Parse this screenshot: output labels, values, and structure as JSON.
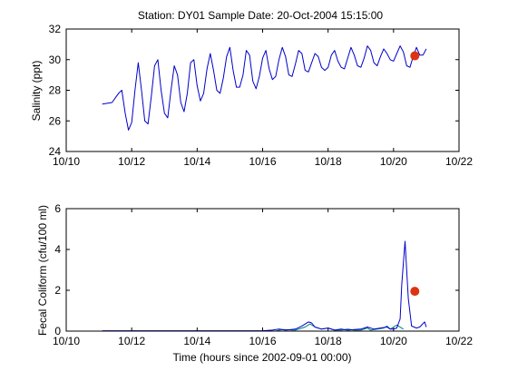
{
  "chart_data": [
    {
      "type": "line",
      "title": "Station: DY01  Sample Date: 20-Oct-2004 15:15:00",
      "ylabel": "Salinity (ppt)",
      "xlabel": "",
      "xlim": [
        10,
        22
      ],
      "ylim": [
        24,
        32
      ],
      "grid": false,
      "x_ticks": [
        10,
        12,
        14,
        16,
        18,
        20,
        22
      ],
      "x_tick_labels": [
        "10/10",
        "10/12",
        "10/14",
        "10/16",
        "10/18",
        "10/20",
        "10/22"
      ],
      "y_ticks": [
        24,
        26,
        28,
        30,
        32
      ],
      "y_tick_labels": [
        "24",
        "26",
        "28",
        "30",
        "32"
      ],
      "series": [
        {
          "color": "#0000cc",
          "x": [
            11.1,
            11.4,
            11.5,
            11.6,
            11.7,
            11.8,
            11.9,
            12.0,
            12.1,
            12.2,
            12.3,
            12.4,
            12.5,
            12.6,
            12.7,
            12.8,
            12.9,
            13.0,
            13.1,
            13.2,
            13.3,
            13.4,
            13.5,
            13.6,
            13.7,
            13.8,
            13.9,
            14.0,
            14.1,
            14.2,
            14.3,
            14.4,
            14.5,
            14.6,
            14.7,
            14.8,
            14.9,
            15.0,
            15.1,
            15.2,
            15.3,
            15.4,
            15.5,
            15.6,
            15.7,
            15.8,
            15.9,
            16.0,
            16.1,
            16.2,
            16.3,
            16.4,
            16.5,
            16.6,
            16.7,
            16.8,
            16.9,
            17.0,
            17.1,
            17.2,
            17.3,
            17.4,
            17.5,
            17.6,
            17.7,
            17.8,
            17.9,
            18.0,
            18.1,
            18.2,
            18.3,
            18.4,
            18.5,
            18.6,
            18.7,
            18.8,
            18.9,
            19.0,
            19.1,
            19.2,
            19.3,
            19.4,
            19.5,
            19.6,
            19.7,
            19.8,
            19.9,
            20.0,
            20.1,
            20.2,
            20.3,
            20.4,
            20.5,
            20.6,
            20.7,
            20.8,
            20.9,
            21.0
          ],
          "y": [
            27.1,
            27.2,
            27.5,
            27.8,
            28.0,
            26.5,
            25.4,
            25.9,
            28.0,
            29.8,
            28.0,
            26.0,
            25.8,
            27.6,
            29.6,
            30.0,
            28.0,
            26.5,
            26.2,
            28.0,
            29.6,
            29.0,
            27.2,
            26.6,
            27.8,
            29.8,
            30.0,
            28.3,
            27.3,
            27.8,
            29.4,
            30.4,
            29.3,
            28.0,
            27.8,
            28.8,
            30.2,
            30.8,
            29.3,
            28.2,
            28.2,
            29.0,
            30.6,
            30.3,
            28.6,
            28.1,
            28.9,
            30.1,
            30.6,
            29.4,
            28.7,
            28.9,
            30.0,
            30.8,
            30.2,
            29.0,
            28.9,
            29.7,
            30.6,
            30.4,
            29.3,
            29.2,
            29.8,
            30.4,
            30.2,
            29.5,
            29.3,
            29.5,
            30.3,
            30.6,
            29.9,
            29.5,
            29.4,
            30.1,
            30.8,
            30.3,
            29.6,
            29.5,
            30.1,
            30.9,
            30.6,
            29.8,
            29.6,
            30.2,
            30.7,
            30.4,
            30.0,
            29.9,
            30.4,
            30.9,
            30.5,
            29.6,
            29.5,
            30.2,
            30.8,
            30.3,
            30.3,
            30.7
          ]
        }
      ],
      "sample": {
        "x": 20.65,
        "y": 30.25,
        "color": "#dd3311"
      }
    },
    {
      "type": "line",
      "title": "",
      "ylabel": "Fecal Coliform  (cfu/100 ml)",
      "xlabel": "Time (hours since 2002-09-01 00:00)",
      "xlim": [
        10,
        22
      ],
      "ylim": [
        0,
        6
      ],
      "grid": false,
      "x_ticks": [
        10,
        12,
        14,
        16,
        18,
        20,
        22
      ],
      "x_tick_labels": [
        "10/10",
        "10/12",
        "10/14",
        "10/16",
        "10/18",
        "10/20",
        "10/22"
      ],
      "y_ticks": [
        0,
        2,
        4,
        6
      ],
      "y_tick_labels": [
        "0",
        "2",
        "4",
        "6"
      ],
      "series": [
        {
          "color": "#008080",
          "x": [
            11.1,
            16.4,
            16.6,
            17.0,
            17.3,
            17.45,
            17.6,
            17.8,
            18.0,
            18.2,
            18.4,
            18.6,
            18.8,
            19.0,
            19.2,
            19.3,
            19.5,
            19.7,
            19.8,
            19.9,
            20.0,
            20.1,
            20.3
          ],
          "y": [
            0.0,
            0.0,
            0.08,
            0.05,
            0.2,
            0.35,
            0.2,
            0.1,
            0.15,
            0.05,
            0.05,
            0.1,
            0.05,
            0.05,
            0.15,
            0.05,
            0.1,
            0.15,
            0.25,
            0.1,
            0.2,
            0.3,
            0.1
          ]
        },
        {
          "color": "#0000cc",
          "x": [
            11.1,
            16.0,
            16.3,
            16.5,
            16.7,
            17.0,
            17.2,
            17.4,
            17.5,
            17.6,
            17.8,
            18.0,
            18.2,
            18.4,
            18.6,
            18.8,
            19.0,
            19.2,
            19.4,
            19.6,
            19.8,
            19.9,
            20.0,
            20.1,
            20.2,
            20.25,
            20.35,
            20.45,
            20.55,
            20.7,
            20.8,
            20.95,
            21.0
          ],
          "y": [
            0.02,
            0.02,
            0.05,
            0.1,
            0.05,
            0.1,
            0.25,
            0.45,
            0.4,
            0.2,
            0.1,
            0.15,
            0.05,
            0.1,
            0.05,
            0.08,
            0.1,
            0.2,
            0.1,
            0.15,
            0.2,
            0.1,
            0.1,
            0.15,
            0.6,
            2.3,
            4.4,
            1.6,
            0.25,
            0.15,
            0.2,
            0.45,
            0.2
          ]
        }
      ],
      "sample": {
        "x": 20.65,
        "y": 1.95,
        "color": "#dd3311"
      }
    }
  ]
}
